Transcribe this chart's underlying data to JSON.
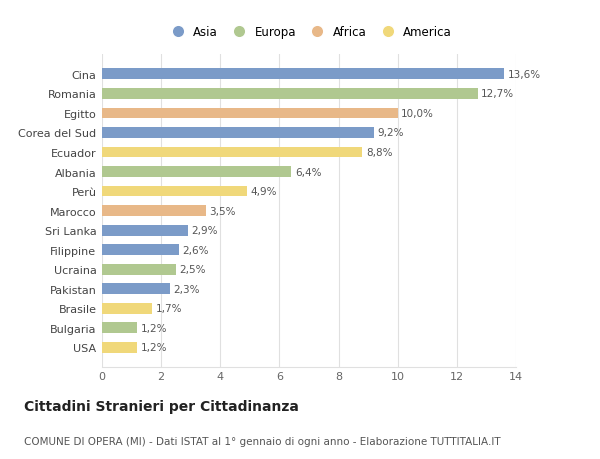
{
  "categories": [
    "USA",
    "Bulgaria",
    "Brasile",
    "Pakistan",
    "Ucraina",
    "Filippine",
    "Sri Lanka",
    "Marocco",
    "Perù",
    "Albania",
    "Ecuador",
    "Corea del Sud",
    "Egitto",
    "Romania",
    "Cina"
  ],
  "values": [
    1.2,
    1.2,
    1.7,
    2.3,
    2.5,
    2.6,
    2.9,
    3.5,
    4.9,
    6.4,
    8.8,
    9.2,
    10.0,
    12.7,
    13.6
  ],
  "continents": [
    "America",
    "Europa",
    "America",
    "Asia",
    "Europa",
    "Asia",
    "Asia",
    "Africa",
    "America",
    "Europa",
    "America",
    "Asia",
    "Africa",
    "Europa",
    "Asia"
  ],
  "colors": {
    "Asia": "#7b9bc8",
    "Europa": "#b0c890",
    "Africa": "#e8b888",
    "America": "#f0d87a"
  },
  "labels": [
    "1,2%",
    "1,2%",
    "1,7%",
    "2,3%",
    "2,5%",
    "2,6%",
    "2,9%",
    "3,5%",
    "4,9%",
    "6,4%",
    "8,8%",
    "9,2%",
    "10,0%",
    "12,7%",
    "13,6%"
  ],
  "legend_order": [
    "Asia",
    "Europa",
    "Africa",
    "America"
  ],
  "xlim": [
    0,
    14
  ],
  "xticks": [
    0,
    2,
    4,
    6,
    8,
    10,
    12,
    14
  ],
  "title": "Cittadini Stranieri per Cittadinanza",
  "subtitle": "COMUNE DI OPERA (MI) - Dati ISTAT al 1° gennaio di ogni anno - Elaborazione TUTTITALIA.IT",
  "background_color": "#ffffff",
  "grid_color": "#e0e0e0",
  "bar_height": 0.55,
  "title_fontsize": 10,
  "subtitle_fontsize": 7.5,
  "label_fontsize": 7.5,
  "ytick_fontsize": 8,
  "xtick_fontsize": 8
}
